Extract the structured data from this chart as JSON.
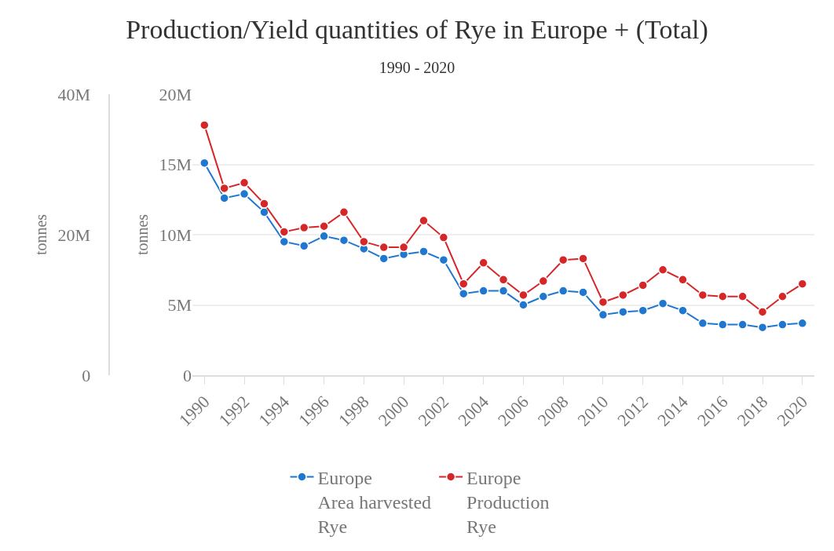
{
  "chart_data": {
    "type": "line",
    "title": "Production/Yield quantities of Rye in Europe + (Total)",
    "subtitle": "1990 - 2020",
    "x": [
      1990,
      1991,
      1992,
      1993,
      1994,
      1995,
      1996,
      1997,
      1998,
      1999,
      2000,
      2001,
      2002,
      2003,
      2004,
      2005,
      2006,
      2007,
      2008,
      2009,
      2010,
      2011,
      2012,
      2013,
      2014,
      2015,
      2016,
      2017,
      2018,
      2019,
      2020
    ],
    "series": [
      {
        "name": "Europe\nArea harvested\nRye",
        "color": "#1f77d0",
        "values": [
          15100000,
          12600000,
          12900000,
          11600000,
          9500000,
          9200000,
          9900000,
          9600000,
          9000000,
          8300000,
          8600000,
          8800000,
          8200000,
          5800000,
          6000000,
          6000000,
          5000000,
          5600000,
          6000000,
          5900000,
          4300000,
          4500000,
          4600000,
          5100000,
          4600000,
          3700000,
          3600000,
          3600000,
          3400000,
          3600000,
          3700000
        ]
      },
      {
        "name": "Europe\nProduction\nRye",
        "color": "#d62728",
        "axis": "y2",
        "values": [
          35600000,
          26600000,
          27400000,
          24400000,
          20400000,
          21000000,
          21200000,
          23200000,
          19000000,
          18200000,
          18200000,
          22000000,
          19600000,
          13000000,
          16000000,
          13600000,
          11400000,
          13400000,
          16400000,
          16600000,
          10400000,
          11400000,
          12800000,
          15000000,
          13600000,
          11400000,
          11200000,
          11200000,
          9000000,
          11200000,
          13000000
        ]
      }
    ],
    "ylabel": "tonnes",
    "y2label": "tonnes",
    "xlim": [
      1989.4,
      2020.6
    ],
    "xticks": [
      1990,
      1992,
      1994,
      1996,
      1998,
      2000,
      2002,
      2004,
      2006,
      2008,
      2010,
      2012,
      2014,
      2016,
      2018,
      2020
    ],
    "ylim": [
      0,
      20000000
    ],
    "yticks": [
      {
        "value": 0,
        "label": "0"
      },
      {
        "value": 5000000,
        "label": "5M"
      },
      {
        "value": 10000000,
        "label": "10M"
      },
      {
        "value": 15000000,
        "label": "15M"
      },
      {
        "value": 20000000,
        "label": "20M"
      }
    ],
    "y2lim": [
      0,
      40000000
    ],
    "y2ticks": [
      {
        "value": 0,
        "label": "0"
      },
      {
        "value": 20000000,
        "label": "20M"
      },
      {
        "value": 40000000,
        "label": "40M"
      }
    ],
    "grid": "y",
    "legend": "bottom",
    "marker": "circle",
    "line_style": "solid"
  }
}
